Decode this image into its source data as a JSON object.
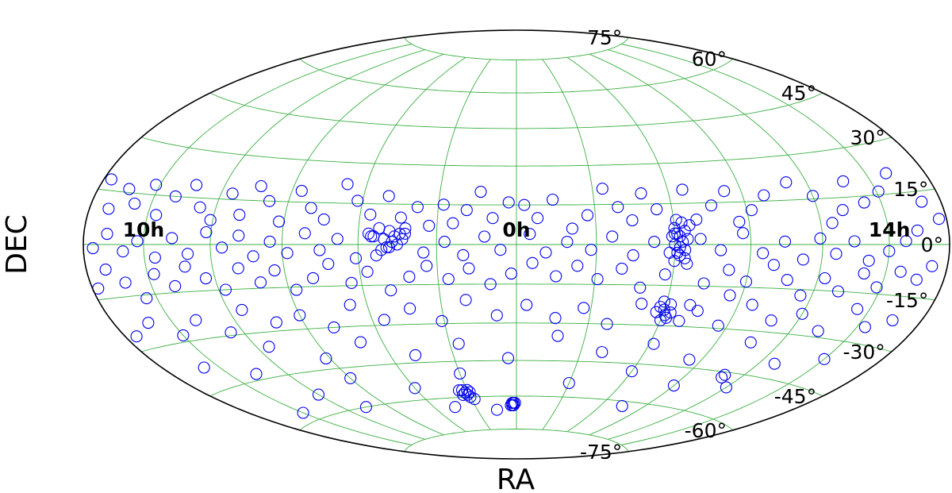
{
  "chart_data": {
    "type": "scatter",
    "projection": "hammer-aitoff",
    "xlabel": "RA",
    "ylabel": "DEC",
    "dec_ticks": [
      "75°",
      "60°",
      "45°",
      "30°",
      "15°",
      "0°",
      "-15°",
      "-30°",
      "-45°",
      "-60°",
      "-75°"
    ],
    "ra_labels": [
      {
        "text": "14h",
        "ra_hours": 14,
        "dec": 0
      },
      {
        "text": "0h",
        "ra_hours": 0,
        "dec": 0
      },
      {
        "text": "10h",
        "ra_hours": 10,
        "dec": 0
      }
    ],
    "meridian_step_deg": 30,
    "parallel_step_deg": 15,
    "grid": true,
    "colors": {
      "marker": "#0000ee",
      "grid": "#3cb043",
      "outline": "#000000"
    },
    "series": [
      {
        "marker": "open-circle",
        "points_lon_lat": [
          [
            -160,
            21
          ],
          [
            -151,
            16
          ],
          [
            -142,
            13
          ],
          [
            -137,
            20
          ],
          [
            -131,
            11
          ],
          [
            -125,
            7
          ],
          [
            -120,
            16
          ],
          [
            -111,
            21
          ],
          [
            -99,
            17
          ],
          [
            -92,
            12
          ],
          [
            -86,
            8
          ],
          [
            -83,
            19
          ],
          [
            -76,
            14
          ],
          [
            -69,
            9
          ],
          [
            -66,
            20
          ],
          [
            -60,
            4
          ],
          [
            -54,
            13
          ],
          [
            -49,
            19
          ],
          [
            -44,
            9
          ],
          [
            -39,
            14
          ],
          [
            -34,
            21
          ],
          [
            -27,
            11
          ],
          [
            -21,
            6
          ],
          [
            -14,
            17
          ],
          [
            -8,
            10
          ],
          [
            -3,
            15
          ],
          [
            3,
            16
          ],
          [
            9,
            10
          ],
          [
            14,
            20
          ],
          [
            19,
            13
          ],
          [
            24,
            8
          ],
          [
            28,
            15
          ],
          [
            33,
            7
          ],
          [
            38,
            14
          ],
          [
            44,
            10
          ],
          [
            50,
            18
          ],
          [
            56,
            11
          ],
          [
            62,
            16
          ],
          [
            68,
            22
          ],
          [
            74,
            9
          ],
          [
            80,
            13
          ],
          [
            86,
            19
          ],
          [
            92,
            8
          ],
          [
            98,
            15
          ],
          [
            104,
            20
          ],
          [
            109,
            10
          ],
          [
            115,
            17
          ],
          [
            121,
            8
          ],
          [
            127,
            12
          ],
          [
            133,
            19
          ],
          [
            140,
            15
          ],
          [
            146,
            9
          ],
          [
            152,
            18
          ],
          [
            158,
            12
          ],
          [
            164,
            16
          ],
          [
            170,
            10
          ],
          [
            176,
            18
          ],
          [
            -170,
            12
          ],
          [
            -176,
            7
          ],
          [
            -164,
            4
          ],
          [
            -158,
            1
          ],
          [
            -150,
            -2
          ],
          [
            -141,
            -5
          ],
          [
            -134,
            1
          ],
          [
            -126,
            -3
          ],
          [
            -119,
            2
          ],
          [
            -112,
            -5
          ],
          [
            -104,
            1
          ],
          [
            -95,
            -3
          ],
          [
            -87,
            4
          ],
          [
            -78,
            -2
          ],
          [
            -70,
            2
          ],
          [
            -61,
            -3
          ],
          [
            -52,
            1
          ],
          [
            -44,
            -4
          ],
          [
            -36,
            3
          ],
          [
            -28,
            -2
          ],
          [
            -19,
            1
          ],
          [
            -11,
            -3
          ],
          [
            -5,
            4
          ],
          [
            6,
            -2
          ],
          [
            12,
            3
          ],
          [
            20,
            -4
          ],
          [
            27,
            1
          ],
          [
            35,
            -3
          ],
          [
            42,
            4
          ],
          [
            48,
            -1
          ],
          [
            55,
            3
          ],
          [
            61,
            -5
          ],
          [
            68,
            2
          ],
          [
            75,
            -2
          ],
          [
            81,
            4
          ],
          [
            88,
            -3
          ],
          [
            95,
            1
          ],
          [
            102,
            -4
          ],
          [
            108,
            3
          ],
          [
            115,
            -1
          ],
          [
            122,
            4
          ],
          [
            130,
            -3
          ],
          [
            137,
            2
          ],
          [
            145,
            -4
          ],
          [
            153,
            1
          ],
          [
            160,
            -2
          ],
          [
            168,
            3
          ],
          [
            175,
            -1
          ],
          [
            -172,
            -6
          ],
          [
            -166,
            -10
          ],
          [
            -157,
            -8
          ],
          [
            -148,
            -13
          ],
          [
            -140,
            -9
          ],
          [
            -131,
            -15
          ],
          [
            -123,
            -11
          ],
          [
            -115,
            -17
          ],
          [
            -107,
            -12
          ],
          [
            -100,
            -7
          ],
          [
            -90,
            -13
          ],
          [
            -82,
            -9
          ],
          [
            -73,
            -14
          ],
          [
            -65,
            -7
          ],
          [
            -57,
            -11
          ],
          [
            -48,
            -16
          ],
          [
            -40,
            -9
          ],
          [
            -31,
            -13
          ],
          [
            -23,
            -8
          ],
          [
            -15,
            -12
          ],
          [
            -6,
            -7
          ],
          [
            2,
            -11
          ],
          [
            10,
            -15
          ],
          [
            18,
            -9
          ],
          [
            26,
            -13
          ],
          [
            34,
            -8
          ],
          [
            41,
            -12
          ],
          [
            49,
            -17
          ],
          [
            57,
            -10
          ],
          [
            64,
            -14
          ],
          [
            72,
            -7
          ],
          [
            79,
            -12
          ],
          [
            87,
            -16
          ],
          [
            94,
            -9
          ],
          [
            101,
            -13
          ],
          [
            109,
            -8
          ],
          [
            117,
            -15
          ],
          [
            124,
            -11
          ],
          [
            132,
            -7
          ],
          [
            139,
            -13
          ],
          [
            147,
            -9
          ],
          [
            155,
            -16
          ],
          [
            162,
            -11
          ],
          [
            170,
            -7
          ],
          [
            177,
            -12
          ],
          [
            -165,
            -22
          ],
          [
            -154,
            -25
          ],
          [
            -144,
            -20
          ],
          [
            -133,
            -28
          ],
          [
            -120,
            -23
          ],
          [
            -108,
            -26
          ],
          [
            -96,
            -21
          ],
          [
            -86,
            -29
          ],
          [
            -74,
            -24
          ],
          [
            -62,
            -27
          ],
          [
            -50,
            -22
          ],
          [
            -38,
            -30
          ],
          [
            -27,
            -24
          ],
          [
            -16,
            -28
          ],
          [
            -4,
            -23
          ],
          [
            8,
            -27
          ],
          [
            20,
            -21
          ],
          [
            31,
            -29
          ],
          [
            43,
            -24
          ],
          [
            55,
            -28
          ],
          [
            67,
            -22
          ],
          [
            78,
            -30
          ],
          [
            90,
            -25
          ],
          [
            102,
            -27
          ],
          [
            114,
            -22
          ],
          [
            126,
            -29
          ],
          [
            138,
            -24
          ],
          [
            150,
            -28
          ],
          [
            162,
            -23
          ],
          [
            174,
            -26
          ],
          [
            -150,
            -36
          ],
          [
            -128,
            -40
          ],
          [
            -106,
            -34
          ],
          [
            -84,
            -42
          ],
          [
            -62,
            -37
          ],
          [
            -40,
            -41
          ],
          [
            -18,
            -35
          ],
          [
            4,
            -44
          ],
          [
            26,
            -38
          ],
          [
            48,
            -42
          ],
          [
            70,
            -36
          ],
          [
            92,
            -41
          ],
          [
            114,
            -35
          ],
          [
            136,
            -43
          ],
          [
            158,
            -38
          ],
          [
            -120,
            -50
          ],
          [
            -90,
            -52
          ],
          [
            -60,
            -48
          ],
          [
            -30,
            -54
          ],
          [
            30,
            -50
          ],
          [
            60,
            -55
          ],
          [
            90,
            -49
          ],
          [
            120,
            -53
          ],
          [
            150,
            -57
          ],
          [
            -75,
            -62
          ],
          [
            15,
            -66
          ],
          [
            45,
            -64
          ],
          [
            105,
            -60
          ],
          [
            -62,
            3
          ],
          [
            -64,
            5
          ],
          [
            -60,
            6
          ],
          [
            -63,
            1
          ],
          [
            -61,
            4
          ],
          [
            -65,
            2
          ],
          [
            -59,
            3
          ],
          [
            -62,
            -1
          ],
          [
            -60,
            0
          ],
          [
            -64,
            -2
          ],
          [
            -63,
            8
          ],
          [
            -61,
            9
          ],
          [
            -66,
            7
          ],
          [
            -62,
            -4
          ],
          [
            -60,
            -6
          ],
          [
            -64,
            -5
          ],
          [
            -58,
            -3
          ],
          [
            46,
            3
          ],
          [
            48,
            5
          ],
          [
            44,
            4
          ],
          [
            50,
            2
          ],
          [
            47,
            1
          ],
          [
            52,
            6
          ],
          [
            45,
            0
          ],
          [
            49,
            -1
          ],
          [
            54,
            3
          ],
          [
            43,
            2
          ],
          [
            51,
            -2
          ],
          [
            56,
            4
          ],
          [
            42,
            6
          ],
          [
            53,
            -4
          ],
          [
            -60,
            -24
          ],
          [
            -62,
            -22
          ],
          [
            -58,
            -23
          ],
          [
            -61,
            -26
          ],
          [
            -59,
            -21
          ],
          [
            -63,
            -25
          ],
          [
            -57,
            -25
          ],
          [
            -60,
            -28
          ],
          [
            2,
            -64
          ],
          [
            3,
            -63
          ],
          [
            1,
            -63
          ],
          [
            3,
            -64
          ],
          [
            4,
            -64
          ],
          [
            2,
            -63
          ],
          [
            32,
            -58
          ],
          [
            30,
            -57
          ],
          [
            34,
            -59
          ],
          [
            31,
            -59
          ],
          [
            33,
            -57
          ],
          [
            29,
            -58
          ],
          [
            35,
            -57
          ],
          [
            30,
            -60
          ],
          [
            28,
            -61
          ],
          [
            -110,
            -47
          ],
          [
            -110,
            -46
          ],
          [
            -70,
            -22
          ],
          [
            -68,
            -28
          ],
          [
            -85,
            -18
          ]
        ]
      }
    ]
  }
}
